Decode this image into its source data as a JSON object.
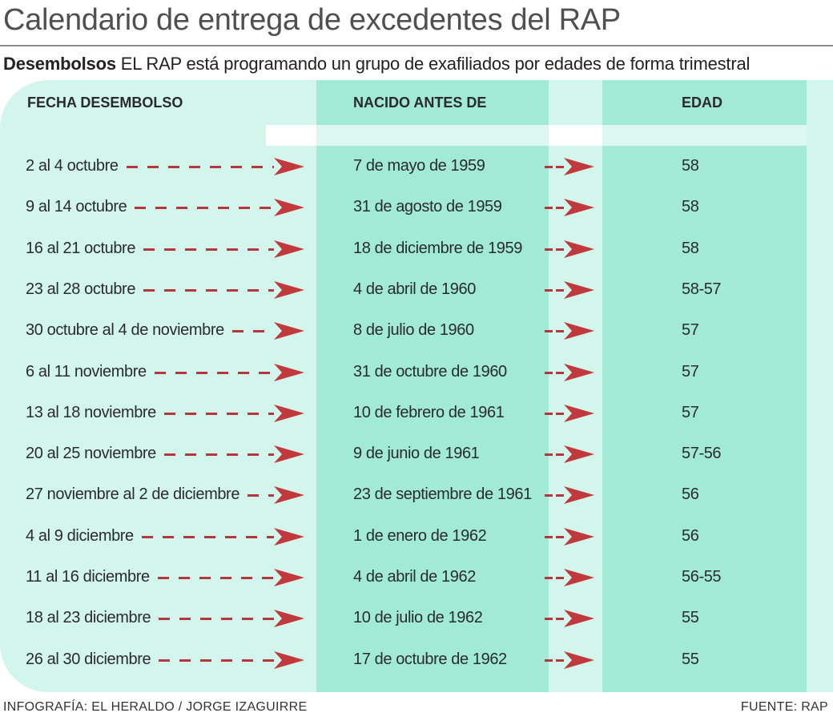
{
  "title": "Calendario de entrega de excedentes del RAP",
  "subtitle": {
    "lead": "Desembolsos",
    "text": " EL RAP está programando un grupo de exafiliados por edades de forma trimestral"
  },
  "columns": {
    "fecha": "FECHA DESEMBOLSO",
    "nacido": "NACIDO ANTES DE",
    "edad": "EDAD"
  },
  "rows": [
    {
      "fecha": "2 al 4 octubre",
      "nacido": "7 de mayo de 1959",
      "edad": "58"
    },
    {
      "fecha": "9 al 14 octubre",
      "nacido": "31 de agosto de 1959",
      "edad": "58"
    },
    {
      "fecha": "16 al 21 octubre",
      "nacido": "18 de diciembre de 1959",
      "edad": "58"
    },
    {
      "fecha": "23 al 28 octubre",
      "nacido": "4 de abril de 1960",
      "edad": "58-57"
    },
    {
      "fecha": "30 octubre al 4 de noviembre",
      "nacido": "8 de julio de 1960",
      "edad": "57"
    },
    {
      "fecha": "6 al 11 noviembre",
      "nacido": "31 de octubre de 1960",
      "edad": "57"
    },
    {
      "fecha": "13 al 18 noviembre",
      "nacido": "10 de febrero de 1961",
      "edad": "57"
    },
    {
      "fecha": "20 al 25 noviembre",
      "nacido": "9 de junio de 1961",
      "edad": "57-56"
    },
    {
      "fecha": "27 noviembre al 2 de diciembre",
      "nacido": "23 de septiembre de 1961",
      "edad": "56"
    },
    {
      "fecha": "4 al 9 diciembre",
      "nacido": "1 de enero de 1962",
      "edad": "56"
    },
    {
      "fecha": "11 al 16 diciembre",
      "nacido": "4 de abril de 1962",
      "edad": "56-55"
    },
    {
      "fecha": "18 al 23 diciembre",
      "nacido": "10 de julio de 1962",
      "edad": "55"
    },
    {
      "fecha": "26 al 30 diciembre",
      "nacido": "17 de octubre de 1962",
      "edad": "55"
    }
  ],
  "footer": {
    "credit": "INFOGRAFÍA: EL HERALDO / JORGE IZAGUIRRE",
    "source": "FUENTE: RAP"
  },
  "colors": {
    "band_light": "#d3f6ec",
    "band_dark": "#a0ead6",
    "arrow": "#c1383d"
  }
}
